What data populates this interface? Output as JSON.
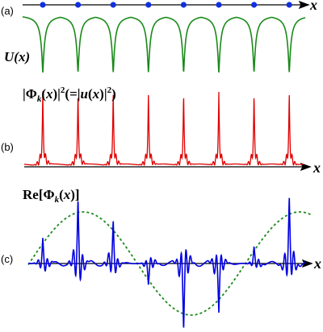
{
  "panels": [
    {
      "label": "(a)",
      "title": [
        "U(",
        "x",
        ")"
      ],
      "axis": "x"
    },
    {
      "label": "(b)",
      "title": [
        "|Φ",
        "k",
        "(",
        "x",
        ")|",
        "2",
        "(=|",
        "u",
        "(",
        "x",
        ")|",
        "2",
        ")"
      ],
      "axis": "x"
    },
    {
      "label": "(c)",
      "title": [
        "Re[Φ",
        "k",
        "(",
        "x",
        ")]"
      ],
      "axis": "x"
    }
  ]
}
